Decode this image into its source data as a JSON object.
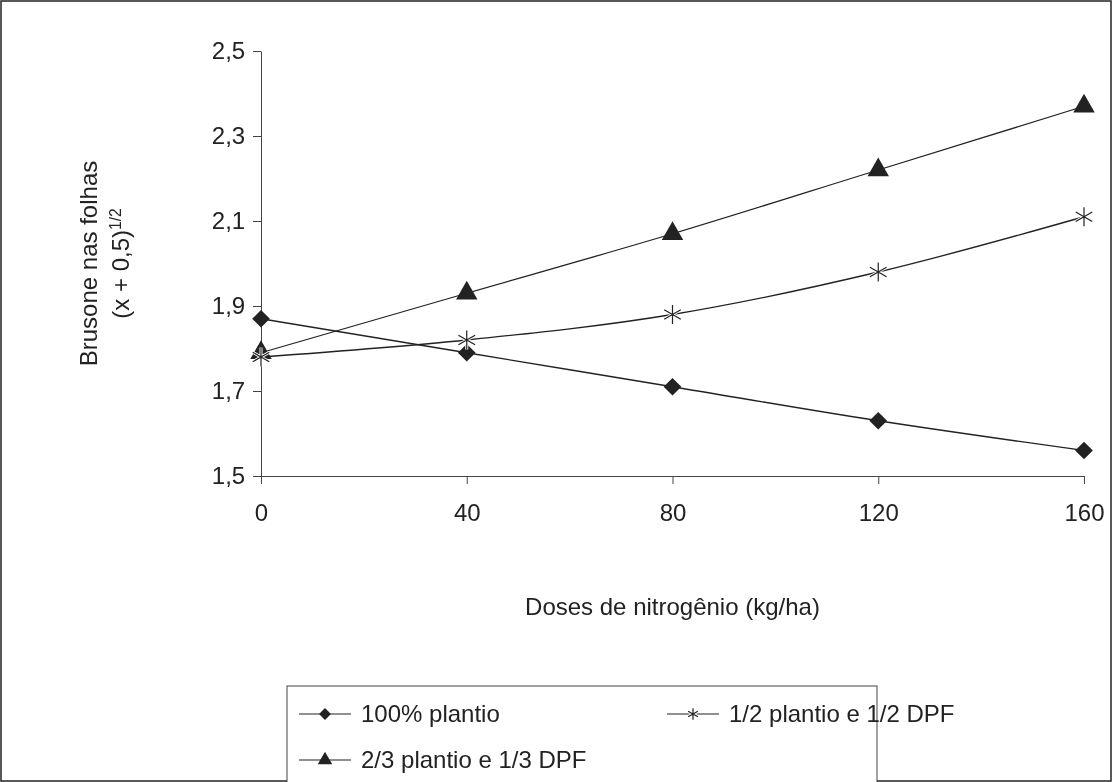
{
  "chart_data": {
    "type": "line",
    "xlabel": "Doses de nitrogênio (kg/ha)",
    "ylabel": "Brusone nas folhas\n(x + 0,5)$^{1/2}$",
    "x": [
      0,
      40,
      80,
      120,
      160
    ],
    "xlim": [
      0,
      160
    ],
    "xticks": [
      0,
      40,
      80,
      120,
      160
    ],
    "ylim": [
      1.5,
      2.5
    ],
    "yticks": [
      {
        "value": 1.5,
        "label": "1,5"
      },
      {
        "value": 1.7,
        "label": "1,7"
      },
      {
        "value": 1.9,
        "label": "1,9"
      },
      {
        "value": 2.1,
        "label": "2,1"
      },
      {
        "value": 2.3,
        "label": "2,3"
      },
      {
        "value": 2.5,
        "label": "2,5"
      }
    ],
    "grid": false,
    "legend": "bottom",
    "line_style": "solid",
    "series": [
      {
        "name": "100% plantio",
        "color": "#222222",
        "marker": "diamond",
        "values": [
          1.87,
          1.79,
          1.71,
          1.63,
          1.56
        ]
      },
      {
        "name": "1/2 plantio e 1/2 DPF",
        "color": "#222222",
        "marker": "cross",
        "values": [
          1.78,
          1.82,
          1.88,
          1.98,
          2.11
        ]
      },
      {
        "name": "2/3 plantio e 1/3 DPF",
        "color": "#222222",
        "marker": "triangle",
        "values": [
          1.79,
          1.93,
          2.07,
          2.22,
          2.37
        ]
      }
    ]
  }
}
